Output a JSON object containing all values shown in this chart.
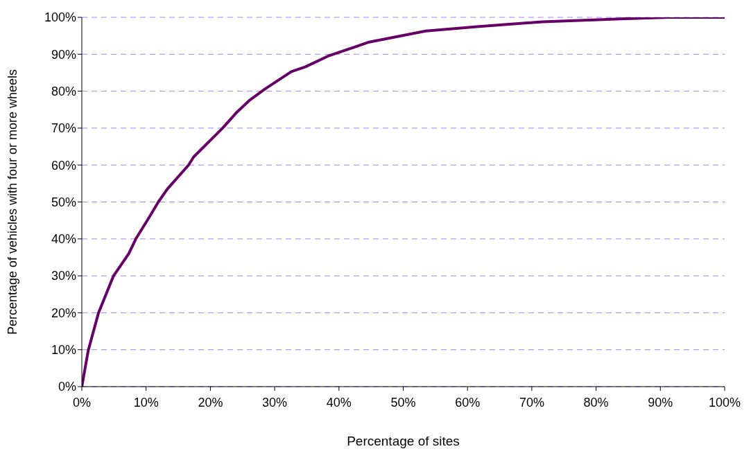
{
  "chart_data": {
    "type": "line",
    "xlabel": "Percentage of sites",
    "ylabel": "Percentage of vehicles with four or more wheels",
    "x": [
      0,
      1,
      2.6,
      4.9,
      7.3,
      8.4,
      10.6,
      11.9,
      13.3,
      16.6,
      17.4,
      21.9,
      24,
      26,
      28.5,
      32.6,
      34.8,
      38.3,
      44.7,
      53.5,
      61.8,
      71.6,
      83.9,
      91.3,
      100
    ],
    "series": [
      {
        "color": "#660066",
        "values": [
          0,
          9.8,
          20,
          29.9,
          36,
          40,
          46.2,
          50,
          53.5,
          60,
          62.2,
          70,
          74.1,
          77.4,
          80.6,
          85.3,
          86.6,
          89.5,
          93.3,
          96.3,
          97.5,
          98.8,
          99.6,
          100,
          100
        ]
      }
    ],
    "xlim": [
      0,
      100
    ],
    "ylim": [
      0,
      100
    ],
    "xticks": [
      {
        "value": 0,
        "label": "0%"
      },
      {
        "value": 10,
        "label": "10%"
      },
      {
        "value": 20,
        "label": "20%"
      },
      {
        "value": 30,
        "label": "30%"
      },
      {
        "value": 40,
        "label": "40%"
      },
      {
        "value": 50,
        "label": "50%"
      },
      {
        "value": 60,
        "label": "60%"
      },
      {
        "value": 70,
        "label": "70%"
      },
      {
        "value": 80,
        "label": "80%"
      },
      {
        "value": 90,
        "label": "90%"
      },
      {
        "value": 100,
        "label": "100%"
      }
    ],
    "yticks": [
      {
        "value": 0,
        "label": "0%"
      },
      {
        "value": 10,
        "label": "10%"
      },
      {
        "value": 20,
        "label": "20%"
      },
      {
        "value": 30,
        "label": "30%"
      },
      {
        "value": 40,
        "label": "40%"
      },
      {
        "value": 50,
        "label": "50%"
      },
      {
        "value": 60,
        "label": "60%"
      },
      {
        "value": 70,
        "label": "70%"
      },
      {
        "value": 80,
        "label": "80%"
      },
      {
        "value": 90,
        "label": "90%"
      },
      {
        "value": 100,
        "label": "100%"
      }
    ],
    "grid": "y",
    "legend": false,
    "marker": "none",
    "line_style": "solid"
  }
}
